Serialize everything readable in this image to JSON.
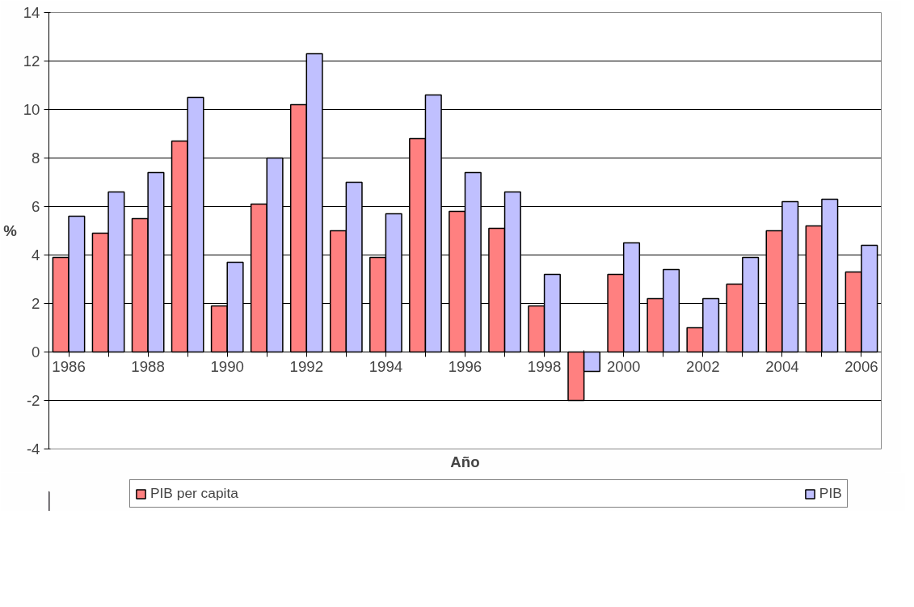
{
  "chart_data": {
    "type": "bar",
    "xlabel": "Año",
    "ylabel": "%",
    "categories": [
      "1986",
      null,
      "1988",
      null,
      "1990",
      null,
      "1992",
      null,
      "1994",
      null,
      "1996",
      null,
      "1998",
      null,
      "2000",
      null,
      "2002",
      null,
      "2004",
      null,
      "2006"
    ],
    "series": [
      {
        "name": "PIB per capita",
        "color": "#ff8080",
        "values": [
          3.9,
          4.9,
          5.5,
          8.7,
          1.9,
          6.1,
          10.2,
          5.0,
          3.9,
          8.8,
          5.8,
          5.1,
          1.9,
          -2.0,
          3.2,
          2.2,
          1.0,
          2.8,
          5.0,
          5.2,
          3.3
        ]
      },
      {
        "name": "PIB",
        "color": "#c0c0ff",
        "values": [
          5.6,
          6.6,
          7.4,
          10.5,
          3.7,
          8.0,
          12.3,
          7.0,
          5.7,
          10.6,
          7.4,
          6.6,
          3.2,
          -0.8,
          4.5,
          3.4,
          2.2,
          3.9,
          6.2,
          6.3,
          4.4
        ]
      }
    ],
    "ylim": [
      -4,
      14
    ],
    "yticks": [
      -4,
      -2,
      0,
      2,
      4,
      6,
      8,
      10,
      12,
      14
    ],
    "grid": "y",
    "legend": "bottom"
  }
}
